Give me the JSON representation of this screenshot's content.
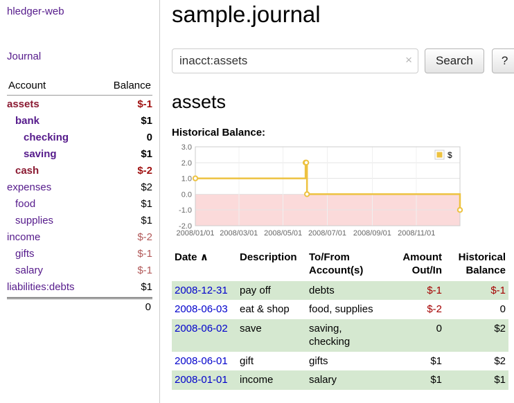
{
  "app": {
    "title": "hledger-web"
  },
  "header": {
    "title": "sample.journal"
  },
  "sidebar": {
    "journal_link": "Journal",
    "accounts": {
      "headers": {
        "account": "Account",
        "balance": "Balance"
      },
      "rows": [
        {
          "name": "assets",
          "balance": "$-1",
          "indent": 0,
          "bold": true,
          "name_color": "maroon",
          "balance_color": "neg"
        },
        {
          "name": "bank",
          "balance": "$1",
          "indent": 1,
          "bold": true,
          "name_color": "purple",
          "balance_color": ""
        },
        {
          "name": "checking",
          "balance": "0",
          "indent": 2,
          "bold": true,
          "name_color": "purple",
          "balance_color": ""
        },
        {
          "name": "saving",
          "balance": "$1",
          "indent": 2,
          "bold": true,
          "name_color": "purple",
          "balance_color": ""
        },
        {
          "name": "cash",
          "balance": "$-2",
          "indent": 1,
          "bold": true,
          "name_color": "maroon",
          "balance_color": "neg"
        },
        {
          "name": "expenses",
          "balance": "$2",
          "indent": 0,
          "bold": false,
          "name_color": "purple",
          "balance_color": ""
        },
        {
          "name": "food",
          "balance": "$1",
          "indent": 1,
          "bold": false,
          "name_color": "purple",
          "balance_color": ""
        },
        {
          "name": "supplies",
          "balance": "$1",
          "indent": 1,
          "bold": false,
          "name_color": "purple",
          "balance_color": ""
        },
        {
          "name": "income",
          "balance": "$-2",
          "indent": 0,
          "bold": false,
          "name_color": "purple",
          "balance_color": "neg-soft"
        },
        {
          "name": "gifts",
          "balance": "$-1",
          "indent": 1,
          "bold": false,
          "name_color": "purple",
          "balance_color": "neg-soft"
        },
        {
          "name": "salary",
          "balance": "$-1",
          "indent": 1,
          "bold": false,
          "name_color": "purple",
          "balance_color": "neg-soft"
        },
        {
          "name": "liabilities:debts",
          "balance": "$1",
          "indent": 0,
          "bold": false,
          "name_color": "purple",
          "balance_color": ""
        }
      ],
      "total": "0"
    }
  },
  "search": {
    "value": "inacct:assets",
    "clear_icon": "×",
    "button_label": "Search",
    "help_label": "?"
  },
  "account_page": {
    "heading": "assets",
    "chart_heading": "Historical Balance:"
  },
  "chart_data": {
    "type": "line",
    "step": true,
    "title": "Historical Balance:",
    "xlim": [
      "2008-01-01",
      "2008-12-31"
    ],
    "ylim": [
      -2,
      3
    ],
    "x_ticks": [
      "2008/01/01",
      "2008/03/01",
      "2008/05/01",
      "2008/07/01",
      "2008/09/01",
      "2008/11/01"
    ],
    "y_ticks": [
      "3.0",
      "2.0",
      "1.0",
      "0.0",
      "-1.0",
      "-2.0"
    ],
    "grid": true,
    "legend": {
      "label": "$",
      "position": "top-right"
    },
    "negative_region_fill": "#fbdada",
    "series": [
      {
        "name": "$",
        "color": "#edc240",
        "points": [
          [
            "2008-01-01",
            1
          ],
          [
            "2008-06-01",
            2
          ],
          [
            "2008-06-02",
            2
          ],
          [
            "2008-06-03",
            0
          ],
          [
            "2008-12-31",
            -1
          ]
        ]
      }
    ]
  },
  "transactions": {
    "sort_indicator": "∧",
    "headers": {
      "date": "Date",
      "description": "Description",
      "accounts": "To/From Account(s)",
      "amount": "Amount Out/In",
      "balance": "Historical Balance"
    },
    "rows": [
      {
        "date": "2008-12-31",
        "description": "pay off",
        "accounts": "debts",
        "amount": "$-1",
        "balance": "$-1",
        "amount_negative": true,
        "balance_negative": true
      },
      {
        "date": "2008-06-03",
        "description": "eat & shop",
        "accounts": "food, supplies",
        "amount": "$-2",
        "balance": "0",
        "amount_negative": true,
        "balance_negative": false
      },
      {
        "date": "2008-06-02",
        "description": "save",
        "accounts": "saving, checking",
        "amount": "0",
        "balance": "$2",
        "amount_negative": false,
        "balance_negative": false
      },
      {
        "date": "2008-06-01",
        "description": "gift",
        "accounts": "gifts",
        "amount": "$1",
        "balance": "$2",
        "amount_negative": false,
        "balance_negative": false
      },
      {
        "date": "2008-01-01",
        "description": "income",
        "accounts": "salary",
        "amount": "$1",
        "balance": "$1",
        "amount_negative": false,
        "balance_negative": false
      }
    ]
  },
  "colors": {
    "link_purple": "#551a8b",
    "account_negative_name": "#8b1a32",
    "negative_red": "#9f1010",
    "soft_negative_red": "#b25959",
    "table_negative_red": "#a40000",
    "row_green": "#d5e8d0",
    "date_link_blue": "#0000cc",
    "chart_line_gold": "#edc240",
    "negative_region_pink": "#fbdada"
  }
}
